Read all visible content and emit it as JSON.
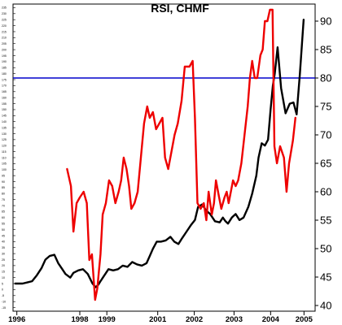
{
  "chart_data": {
    "type": "line",
    "title": "RSI, CHMF",
    "x_tick_labels": [
      "1996",
      "1998",
      "1999",
      "2001",
      "2002",
      "2003",
      "2004",
      "2005"
    ],
    "right_axis": {
      "ticks": [
        40,
        45,
        50,
        55,
        60,
        65,
        70,
        75,
        80,
        85,
        90
      ],
      "ylim": [
        39,
        93
      ]
    },
    "left_axis": {
      "ticks": [
        -15,
        -10,
        -5,
        0,
        5,
        10,
        15,
        20,
        25,
        30,
        35,
        40,
        45,
        50,
        55,
        60,
        65,
        70,
        75,
        80,
        85,
        90,
        95,
        100,
        105,
        110,
        115,
        120,
        125,
        130,
        135,
        140,
        145,
        150,
        155,
        160,
        165,
        170,
        175,
        180,
        185,
        190,
        195,
        200,
        205,
        210,
        215,
        220,
        225,
        230,
        235
      ],
      "ylim": [
        -18,
        238
      ]
    },
    "reference_line": {
      "axis": "right",
      "value": 80,
      "color": "#0000cc"
    },
    "xlim": [
      1995.9,
      2005.4
    ],
    "grid": false,
    "legend": "none",
    "series": [
      {
        "axis": "left",
        "color": "#000000",
        "points": [
          [
            1995.97,
            5
          ],
          [
            1996.2,
            5
          ],
          [
            1996.35,
            6
          ],
          [
            1996.5,
            7
          ],
          [
            1996.65,
            12
          ],
          [
            1996.8,
            18
          ],
          [
            1996.92,
            25
          ],
          [
            1997.05,
            28
          ],
          [
            1997.2,
            29
          ],
          [
            1997.32,
            22
          ],
          [
            1997.45,
            17
          ],
          [
            1997.55,
            13
          ],
          [
            1997.7,
            10
          ],
          [
            1997.8,
            14
          ],
          [
            1997.95,
            16
          ],
          [
            1998.1,
            17
          ],
          [
            1998.25,
            13
          ],
          [
            1998.4,
            5
          ],
          [
            1998.5,
            2
          ],
          [
            1998.58,
            4
          ],
          [
            1998.65,
            7
          ],
          [
            1998.75,
            11
          ],
          [
            1998.9,
            17
          ],
          [
            1999.05,
            16
          ],
          [
            1999.2,
            17
          ],
          [
            1999.35,
            20
          ],
          [
            1999.5,
            19
          ],
          [
            1999.65,
            23
          ],
          [
            1999.8,
            21
          ],
          [
            1999.95,
            20
          ],
          [
            2000.1,
            22
          ],
          [
            2000.2,
            28
          ],
          [
            2000.3,
            34
          ],
          [
            2000.42,
            40
          ],
          [
            2000.55,
            40
          ],
          [
            2000.7,
            41
          ],
          [
            2000.85,
            44
          ],
          [
            2000.97,
            40
          ],
          [
            2001.1,
            38
          ],
          [
            2001.22,
            43
          ],
          [
            2001.35,
            48
          ],
          [
            2001.5,
            54
          ],
          [
            2001.62,
            58
          ],
          [
            2001.72,
            69
          ],
          [
            2001.85,
            71
          ],
          [
            2001.97,
            66
          ],
          [
            2002.1,
            63
          ],
          [
            2002.25,
            57
          ],
          [
            2002.4,
            56
          ],
          [
            2002.5,
            60
          ],
          [
            2002.58,
            57
          ],
          [
            2002.66,
            55
          ],
          [
            2002.78,
            60
          ],
          [
            2002.9,
            63
          ],
          [
            2003.02,
            58
          ],
          [
            2003.15,
            60
          ],
          [
            2003.3,
            69
          ],
          [
            2003.42,
            80
          ],
          [
            2003.55,
            95
          ],
          [
            2003.62,
            110
          ],
          [
            2003.72,
            122
          ],
          [
            2003.82,
            120
          ],
          [
            2003.92,
            125
          ],
          [
            2004.0,
            150
          ],
          [
            2004.07,
            170
          ],
          [
            2004.13,
            180
          ],
          [
            2004.22,
            202
          ],
          [
            2004.33,
            168
          ],
          [
            2004.47,
            147
          ],
          [
            2004.6,
            155
          ],
          [
            2004.72,
            156
          ],
          [
            2004.82,
            146
          ],
          [
            2004.92,
            180
          ],
          [
            2005.04,
            225
          ]
        ]
      },
      {
        "axis": "right",
        "color": "#ee0000",
        "points": [
          [
            1997.6,
            64
          ],
          [
            1997.72,
            61
          ],
          [
            1997.8,
            53
          ],
          [
            1997.9,
            58
          ],
          [
            1998.0,
            59
          ],
          [
            1998.12,
            60
          ],
          [
            1998.22,
            58
          ],
          [
            1998.3,
            48
          ],
          [
            1998.38,
            49
          ],
          [
            1998.48,
            41
          ],
          [
            1998.55,
            43
          ],
          [
            1998.65,
            49
          ],
          [
            1998.72,
            56
          ],
          [
            1998.82,
            58
          ],
          [
            1998.92,
            62
          ],
          [
            1999.02,
            61
          ],
          [
            1999.12,
            58
          ],
          [
            1999.22,
            60
          ],
          [
            1999.3,
            62
          ],
          [
            1999.38,
            66
          ],
          [
            1999.47,
            64
          ],
          [
            1999.55,
            61
          ],
          [
            1999.62,
            57
          ],
          [
            1999.72,
            58
          ],
          [
            1999.82,
            60
          ],
          [
            1999.92,
            66
          ],
          [
            2000.02,
            72
          ],
          [
            2000.12,
            75
          ],
          [
            2000.2,
            73
          ],
          [
            2000.3,
            74
          ],
          [
            2000.4,
            71
          ],
          [
            2000.5,
            72
          ],
          [
            2000.6,
            73
          ],
          [
            2000.68,
            66
          ],
          [
            2000.78,
            64
          ],
          [
            2000.88,
            67
          ],
          [
            2000.98,
            70
          ],
          [
            2001.08,
            72
          ],
          [
            2001.2,
            76
          ],
          [
            2001.3,
            82
          ],
          [
            2001.45,
            82
          ],
          [
            2001.55,
            83
          ],
          [
            2001.62,
            73
          ],
          [
            2001.7,
            58
          ],
          [
            2001.8,
            57
          ],
          [
            2001.9,
            58
          ],
          [
            2001.98,
            55
          ],
          [
            2002.05,
            60
          ],
          [
            2002.15,
            56
          ],
          [
            2002.22,
            58
          ],
          [
            2002.28,
            62
          ],
          [
            2002.38,
            59
          ],
          [
            2002.45,
            57
          ],
          [
            2002.55,
            59
          ],
          [
            2002.62,
            60
          ],
          [
            2002.68,
            58
          ],
          [
            2002.75,
            60
          ],
          [
            2002.82,
            62
          ],
          [
            2002.9,
            61
          ],
          [
            2002.98,
            62
          ],
          [
            2003.08,
            65
          ],
          [
            2003.18,
            70
          ],
          [
            2003.28,
            75
          ],
          [
            2003.35,
            80
          ],
          [
            2003.42,
            83
          ],
          [
            2003.5,
            80
          ],
          [
            2003.58,
            80
          ],
          [
            2003.68,
            84
          ],
          [
            2003.75,
            85
          ],
          [
            2003.82,
            90
          ],
          [
            2003.9,
            90
          ],
          [
            2003.98,
            92
          ],
          [
            2004.06,
            92
          ],
          [
            2004.12,
            68
          ],
          [
            2004.2,
            65
          ],
          [
            2004.3,
            68
          ],
          [
            2004.42,
            66
          ],
          [
            2004.5,
            60
          ],
          [
            2004.58,
            65
          ],
          [
            2004.7,
            69
          ],
          [
            2004.78,
            73
          ]
        ]
      }
    ]
  }
}
